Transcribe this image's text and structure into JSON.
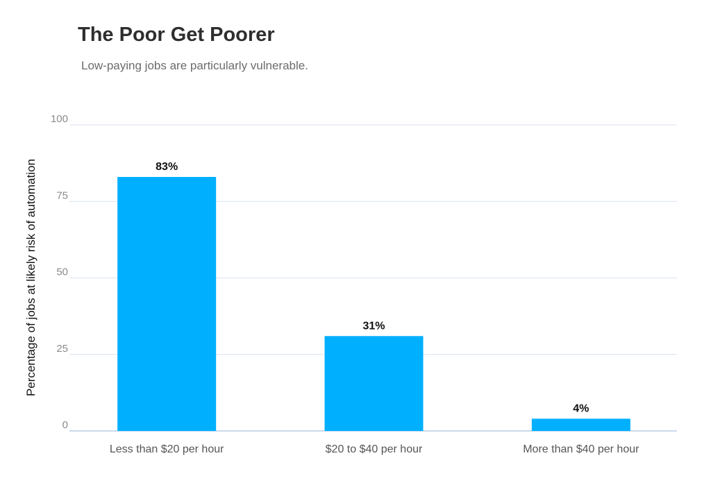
{
  "chart_data": {
    "type": "bar",
    "title": "The Poor Get Poorer",
    "subtitle": "Low-paying jobs are particularly vulnerable.",
    "xlabel": "",
    "ylabel": "Percentage of jobs at likely risk of automation",
    "categories": [
      "Less than $20 per hour",
      "$20 to $40 per hour",
      "More than $40 per hour"
    ],
    "values": [
      83,
      31,
      4
    ],
    "data_labels": [
      "83%",
      "31%",
      "4%"
    ],
    "ylim": [
      0,
      100
    ],
    "yticks": [
      0,
      25,
      50,
      75,
      100
    ],
    "grid": true,
    "bar_color": "#00b0ff",
    "grid_color": "#d9e2ef"
  }
}
